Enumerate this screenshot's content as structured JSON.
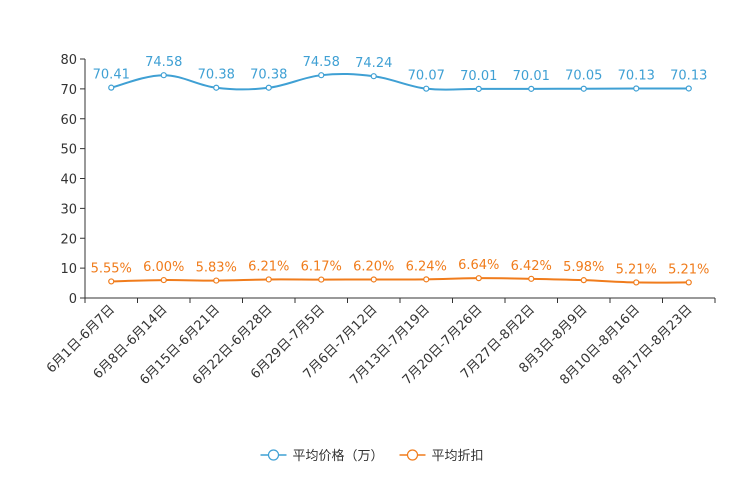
{
  "chart_data": {
    "type": "line",
    "title": "",
    "xlabel": "",
    "ylabel": "",
    "ylim": [
      0,
      80
    ],
    "yticks": [
      0,
      10,
      20,
      30,
      40,
      50,
      60,
      70,
      80
    ],
    "categories": [
      "6月1日-6月7日",
      "6月8日-6月14日",
      "6月15日-6月21日",
      "6月22日-6月28日",
      "6月29日-7月5日",
      "7月6日-7月12日",
      "7月13日-7月19日",
      "7月20日-7月26日",
      "7月27日-8月2日",
      "8月3日-8月9日",
      "8月10日-8月16日",
      "8月17日-8月23日"
    ],
    "series": [
      {
        "name": "平均价格（万）",
        "color": "#3fa0d4",
        "values": [
          70.41,
          74.58,
          70.38,
          70.38,
          74.58,
          74.24,
          70.07,
          70.01,
          70.01,
          70.05,
          70.13,
          70.13
        ],
        "labels": [
          "70.41",
          "74.58",
          "70.38",
          "70.38",
          "74.58",
          "74.24",
          "70.07",
          "70.01",
          "70.01",
          "70.05",
          "70.13",
          "70.13"
        ]
      },
      {
        "name": "平均折扣",
        "color": "#f07c1c",
        "values": [
          5.55,
          6.0,
          5.83,
          6.21,
          6.17,
          6.2,
          6.24,
          6.64,
          6.42,
          5.98,
          5.21,
          5.21
        ],
        "labels": [
          "5.55%",
          "6.00%",
          "5.83%",
          "6.21%",
          "6.17%",
          "6.20%",
          "6.24%",
          "6.64%",
          "6.42%",
          "5.98%",
          "5.21%",
          "5.21%"
        ]
      }
    ],
    "legend": "bottom-center",
    "grid": false
  }
}
